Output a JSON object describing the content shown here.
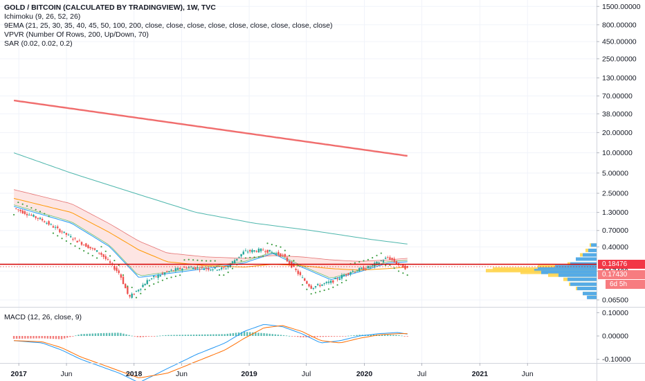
{
  "legend": {
    "title": "GOLD / BITCOIN (CALCULATED BY TRADINGVIEW), 1W, TVC",
    "ichimoku": "Ichimoku (9, 26, 52, 26)",
    "ema": "9EMA (21, 25, 30, 35, 40, 45, 50, 100, 200, close, close, close, close, close, close, close, close, close)",
    "vpvr": "VPVR (Number Of Rows, 200, Up/Down, 70)",
    "sar": "SAR (0.02, 0.02, 0.2)"
  },
  "macd_label": "MACD (12, 26, close, 9)",
  "price_tags": {
    "current": "0.18476",
    "ema": "0.17430",
    "countdown": "6d 5h"
  },
  "colors": {
    "up": "#26a69a",
    "down": "#ef5350",
    "cloud": "#fde0de",
    "current_line": "#d50000",
    "tag_red": "#f23645",
    "tag_salmon": "#f77c80",
    "ema_short": "#2196f3",
    "ema_mid": "#ff9800",
    "ema_long": "#4caf50",
    "ema_200": "#f06d6d",
    "vpvr_up": "#42a5f5",
    "vpvr_down": "#ffd54f"
  },
  "chart_data": [
    {
      "type": "line",
      "title": "GOLD / BITCOIN (CALCULATED BY TRADINGVIEW), 1W, TVC",
      "y_scale": "log",
      "y_ticks": [
        "1500.00000",
        "800.00000",
        "450.00000",
        "250.00000",
        "130.00000",
        "70.00000",
        "38.00000",
        "20.00000",
        "10.00000",
        "5.00000",
        "2.50000",
        "1.30000",
        "0.70000",
        "0.40000",
        "0.17430",
        "0.06500"
      ],
      "x_ticks": [
        "2017",
        "Jun",
        "2018",
        "Jun",
        "2019",
        "Jul",
        "2020",
        "Jul",
        "2021",
        "Jun"
      ],
      "current_value": 0.18476,
      "series": [
        {
          "kind": "price",
          "x": [
            "2016-12",
            "2017-03",
            "2017-06",
            "2017-09",
            "2017-11",
            "2017-12",
            "2018-02",
            "2018-04",
            "2018-06",
            "2018-08",
            "2018-10",
            "2018-12",
            "2019-02",
            "2019-04",
            "2019-06",
            "2019-07",
            "2019-09",
            "2019-11",
            "2020-01",
            "2020-03",
            "2020-04",
            "2020-05"
          ],
          "y": [
            1.5,
            1.0,
            0.55,
            0.32,
            0.16,
            0.07,
            0.13,
            0.17,
            0.2,
            0.19,
            0.19,
            0.34,
            0.36,
            0.3,
            0.14,
            0.1,
            0.12,
            0.17,
            0.2,
            0.28,
            0.22,
            0.19
          ]
        },
        {
          "kind": "ema200",
          "x": [
            "2016-12",
            "2020-05"
          ],
          "y": [
            60,
            9
          ]
        },
        {
          "kind": "ema100",
          "x": [
            "2016-12",
            "2017-06",
            "2018-01",
            "2018-07",
            "2019-01",
            "2019-07",
            "2020-01",
            "2020-05"
          ],
          "y": [
            10,
            5,
            2.4,
            1.3,
            0.9,
            0.7,
            0.52,
            0.44
          ]
        },
        {
          "kind": "ema_short",
          "x": [
            "2016-12",
            "2017-06",
            "2017-10",
            "2018-01",
            "2018-04",
            "2018-08",
            "2018-12",
            "2019-03",
            "2019-06",
            "2019-09",
            "2019-12",
            "2020-03",
            "2020-05"
          ],
          "y": [
            1.6,
            0.9,
            0.4,
            0.14,
            0.16,
            0.19,
            0.23,
            0.32,
            0.2,
            0.13,
            0.17,
            0.23,
            0.24
          ]
        },
        {
          "kind": "ema_mid",
          "x": [
            "2016-12",
            "2017-06",
            "2017-10",
            "2018-01",
            "2018-04",
            "2018-08",
            "2018-12",
            "2019-03",
            "2019-06",
            "2019-09",
            "2019-12",
            "2020-03",
            "2020-05"
          ],
          "y": [
            2.1,
            1.3,
            0.65,
            0.36,
            0.24,
            0.21,
            0.2,
            0.22,
            0.21,
            0.19,
            0.18,
            0.19,
            0.2
          ]
        }
      ],
      "volume_profile": {
        "prices": [
          0.42,
          0.35,
          0.3,
          0.26,
          0.22,
          0.2,
          0.185,
          0.175,
          0.165,
          0.15,
          0.13,
          0.11,
          0.095,
          0.08,
          0.07
        ],
        "up": [
          8,
          12,
          20,
          30,
          38,
          60,
          85,
          90,
          80,
          55,
          42,
          38,
          28,
          20,
          14
        ],
        "down": [
          10,
          16,
          24,
          30,
          42,
          85,
          150,
          160,
          110,
          70,
          48,
          40,
          30,
          20,
          12
        ]
      }
    },
    {
      "type": "bar",
      "title": "MACD (12, 26, close, 9)",
      "y_ticks": [
        "0.10000",
        "0.00000",
        "-0.10000"
      ],
      "x": [
        "2016-12",
        "2017-03",
        "2017-05",
        "2017-07",
        "2017-09",
        "2017-11",
        "2018-01",
        "2018-04",
        "2018-07",
        "2018-10",
        "2018-12",
        "2019-02",
        "2019-04",
        "2019-06",
        "2019-08",
        "2019-10",
        "2019-12",
        "2020-02",
        "2020-04",
        "2020-05"
      ],
      "values": [
        -0.012,
        -0.01,
        -0.014,
        0.008,
        0.012,
        0.014,
        -0.006,
        0.004,
        0.006,
        0.008,
        0.018,
        0.012,
        0.004,
        -0.006,
        -0.004,
        -0.002,
        0.005,
        0.006,
        0.004,
        -0.002
      ],
      "macd": [
        -0.02,
        -0.03,
        -0.06,
        -0.1,
        -0.13,
        -0.16,
        -0.2,
        -0.14,
        -0.08,
        -0.03,
        0.02,
        0.05,
        0.04,
        0.01,
        -0.03,
        -0.02,
        0.0,
        0.01,
        0.015,
        0.008
      ],
      "signal": [
        -0.02,
        -0.025,
        -0.05,
        -0.09,
        -0.12,
        -0.15,
        -0.18,
        -0.16,
        -0.11,
        -0.06,
        -0.01,
        0.035,
        0.045,
        0.02,
        -0.02,
        -0.03,
        -0.01,
        0.005,
        0.01,
        0.01
      ]
    }
  ]
}
